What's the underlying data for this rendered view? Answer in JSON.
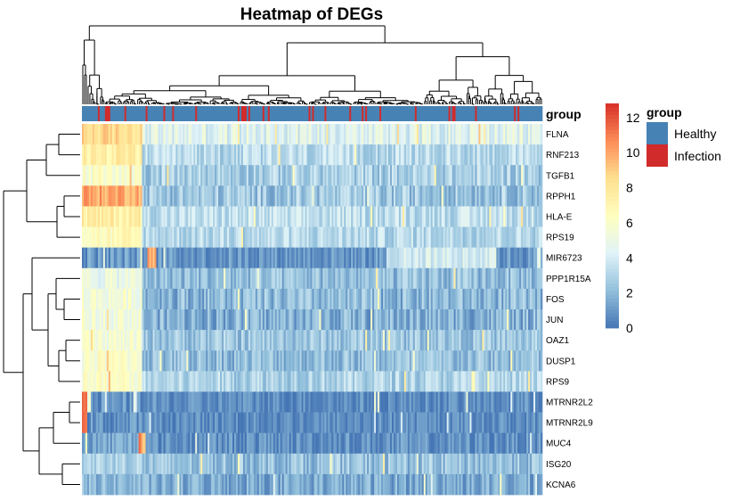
{
  "chart_data": {
    "type": "heatmap",
    "title": "Heatmap of DEGs",
    "rows": [
      "FLNA",
      "RNF213",
      "TGFB1",
      "RPPH1",
      "HLA-E",
      "RPS19",
      "MIR6723",
      "PPP1R15A",
      "FOS",
      "JUN",
      "OAZ1",
      "DUSP1",
      "RPS9",
      "MTRNR2L2",
      "MTRNR2L9",
      "MUC4",
      "ISG20",
      "KCNA6"
    ],
    "row_profiles": {
      "FLNA": {
        "left": 8.5,
        "base": 4.5,
        "spread": 1.3
      },
      "RNF213": {
        "left": 7.5,
        "base": 3.2,
        "spread": 1.2
      },
      "TGFB1": {
        "left": 6.0,
        "base": 2.8,
        "spread": 1.3
      },
      "RPPH1": {
        "left": 10.0,
        "base": 2.5,
        "spread": 1.4
      },
      "HLA-E": {
        "left": 7.5,
        "base": 3.4,
        "spread": 1.2
      },
      "RPS19": {
        "left": 6.5,
        "base": 3.2,
        "spread": 1.2
      },
      "MIR6723": {
        "left": 1.0,
        "base": 1.0,
        "spread": 1.0
      },
      "PPP1R15A": {
        "left": 5.0,
        "base": 2.2,
        "spread": 1.3
      },
      "FOS": {
        "left": 5.5,
        "base": 2.0,
        "spread": 1.4
      },
      "JUN": {
        "left": 5.5,
        "base": 1.8,
        "spread": 1.4
      },
      "OAZ1": {
        "left": 5.5,
        "base": 2.5,
        "spread": 1.2
      },
      "DUSP1": {
        "left": 6.0,
        "base": 2.2,
        "spread": 1.3
      },
      "RPS9": {
        "left": 6.0,
        "base": 3.0,
        "spread": 1.2
      },
      "MTRNR2L2": {
        "left": 0.8,
        "base": 0.7,
        "spread": 0.9
      },
      "MTRNR2L9": {
        "left": 0.8,
        "base": 0.7,
        "spread": 0.9
      },
      "MUC4": {
        "left": 1.5,
        "base": 0.8,
        "spread": 1.0
      },
      "ISG20": {
        "left": 3.0,
        "base": 2.3,
        "spread": 1.3
      },
      "KCNA6": {
        "left": 2.0,
        "base": 1.6,
        "spread": 1.2
      }
    },
    "n_samples": 260,
    "infection_fraction": 0.1,
    "color_scale": {
      "min": 0,
      "max": 12.8,
      "ticks": [
        0,
        2,
        4,
        6,
        8,
        10,
        12
      ],
      "colors": [
        "#4575b4",
        "#91bfdb",
        "#e0f3f8",
        "#ffffbf",
        "#fee090",
        "#fc8d59",
        "#d73027"
      ]
    },
    "annotation": {
      "title": "group",
      "legend": [
        {
          "label": "Healthy",
          "color": "#4682b4"
        },
        {
          "label": "Infection",
          "color": "#d22b2b"
        }
      ]
    },
    "colorbar_title": "",
    "xlabel": "",
    "ylabel": ""
  }
}
